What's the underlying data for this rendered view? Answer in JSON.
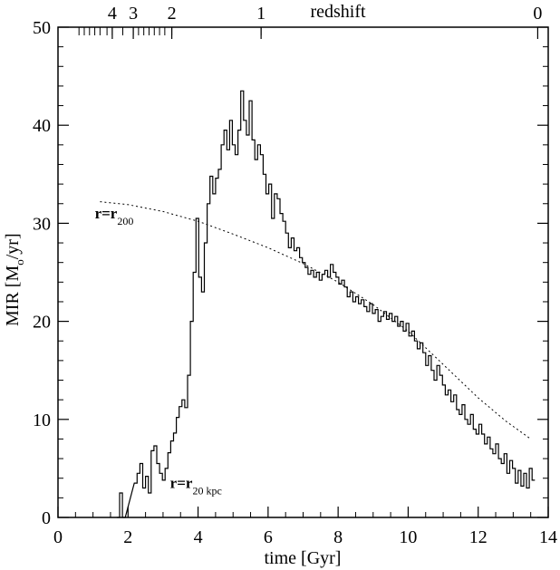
{
  "chart_data": {
    "type": "line",
    "xlabel": "time [Gyr]",
    "ylabel": "MIR [M",
    "ylabel_sub": "o",
    "ylabel_tail": "/yr]",
    "top_axis_label": "redshift",
    "xlim": [
      0,
      14
    ],
    "ylim": [
      0,
      50
    ],
    "x_ticks": [
      0,
      2,
      4,
      6,
      8,
      10,
      12,
      14
    ],
    "y_ticks": [
      0,
      10,
      20,
      30,
      40,
      50
    ],
    "x_tick_labels": [
      "0",
      "2",
      "4",
      "6",
      "8",
      "10",
      "12",
      "14"
    ],
    "y_tick_labels": [
      "0",
      "10",
      "20",
      "30",
      "40",
      "50"
    ],
    "redshift_ticks": [
      {
        "label": "4",
        "t": 1.55
      },
      {
        "label": "3",
        "t": 2.15
      },
      {
        "label": "2",
        "t": 3.25
      },
      {
        "label": "1",
        "t": 5.8
      },
      {
        "label": "0",
        "t": 13.7
      }
    ],
    "redshift_minor_ticks": [
      0.6,
      0.75,
      0.9,
      1.05,
      1.2,
      1.4,
      1.55,
      1.85,
      2.15,
      2.3,
      2.45,
      2.6,
      2.75,
      2.9,
      3.05,
      3.25,
      5.8
    ],
    "series": [
      {
        "style": "step",
        "points": [
          [
            1.72,
            0.0
          ],
          [
            1.8,
            2.5
          ],
          [
            1.88,
            0.0
          ],
          [
            2.22,
            3.5
          ],
          [
            2.3,
            4.5
          ],
          [
            2.38,
            5.5
          ],
          [
            2.46,
            3.0
          ],
          [
            2.54,
            4.2
          ],
          [
            2.62,
            2.5
          ],
          [
            2.7,
            6.8
          ],
          [
            2.78,
            7.3
          ],
          [
            2.86,
            5.5
          ],
          [
            2.94,
            4.5
          ],
          [
            3.02,
            3.8
          ],
          [
            3.1,
            5.0
          ],
          [
            3.18,
            6.6
          ],
          [
            3.26,
            7.8
          ],
          [
            3.34,
            8.6
          ],
          [
            3.42,
            10.2
          ],
          [
            3.5,
            11.3
          ],
          [
            3.58,
            12.0
          ],
          [
            3.66,
            11.2
          ],
          [
            3.74,
            14.5
          ],
          [
            3.82,
            20.0
          ],
          [
            3.9,
            25.0
          ],
          [
            3.98,
            30.5
          ],
          [
            4.06,
            24.5
          ],
          [
            4.14,
            23.0
          ],
          [
            4.22,
            28.0
          ],
          [
            4.3,
            32.0
          ],
          [
            4.38,
            34.8
          ],
          [
            4.46,
            33.0
          ],
          [
            4.54,
            34.6
          ],
          [
            4.62,
            35.5
          ],
          [
            4.7,
            38.0
          ],
          [
            4.78,
            39.5
          ],
          [
            4.86,
            37.5
          ],
          [
            4.94,
            40.5
          ],
          [
            5.02,
            38.0
          ],
          [
            5.1,
            37.0
          ],
          [
            5.18,
            39.5
          ],
          [
            5.26,
            43.5
          ],
          [
            5.34,
            40.5
          ],
          [
            5.42,
            39.0
          ],
          [
            5.5,
            42.5
          ],
          [
            5.58,
            38.5
          ],
          [
            5.66,
            36.5
          ],
          [
            5.74,
            38.0
          ],
          [
            5.82,
            37.0
          ],
          [
            5.9,
            35.0
          ],
          [
            5.98,
            33.0
          ],
          [
            6.06,
            34.0
          ],
          [
            6.14,
            30.5
          ],
          [
            6.22,
            33.0
          ],
          [
            6.3,
            32.5
          ],
          [
            6.38,
            31.0
          ],
          [
            6.46,
            30.2
          ],
          [
            6.54,
            29.0
          ],
          [
            6.62,
            27.5
          ],
          [
            6.7,
            28.5
          ],
          [
            6.78,
            27.2
          ],
          [
            6.86,
            27.5
          ],
          [
            6.94,
            26.5
          ],
          [
            7.02,
            26.0
          ],
          [
            7.1,
            25.5
          ],
          [
            7.18,
            24.8
          ],
          [
            7.26,
            25.2
          ],
          [
            7.34,
            24.5
          ],
          [
            7.42,
            25.0
          ],
          [
            7.5,
            24.2
          ],
          [
            7.58,
            24.8
          ],
          [
            7.66,
            25.2
          ],
          [
            7.74,
            24.5
          ],
          [
            7.82,
            25.8
          ],
          [
            7.9,
            25.0
          ],
          [
            7.98,
            24.5
          ],
          [
            8.06,
            23.8
          ],
          [
            8.14,
            24.2
          ],
          [
            8.22,
            23.5
          ],
          [
            8.3,
            22.5
          ],
          [
            8.38,
            23.0
          ],
          [
            8.46,
            22.0
          ],
          [
            8.54,
            22.5
          ],
          [
            8.62,
            21.8
          ],
          [
            8.7,
            22.2
          ],
          [
            8.78,
            21.5
          ],
          [
            8.86,
            21.0
          ],
          [
            8.94,
            21.8
          ],
          [
            9.02,
            20.8
          ],
          [
            9.1,
            21.2
          ],
          [
            9.18,
            20.0
          ],
          [
            9.26,
            20.5
          ],
          [
            9.34,
            21.0
          ],
          [
            9.42,
            20.2
          ],
          [
            9.5,
            20.8
          ],
          [
            9.58,
            20.0
          ],
          [
            9.66,
            20.5
          ],
          [
            9.74,
            19.5
          ],
          [
            9.82,
            20.0
          ],
          [
            9.9,
            19.0
          ],
          [
            9.98,
            19.8
          ],
          [
            10.06,
            18.5
          ],
          [
            10.14,
            19.0
          ],
          [
            10.22,
            18.0
          ],
          [
            10.3,
            17.2
          ],
          [
            10.38,
            17.8
          ],
          [
            10.46,
            16.8
          ],
          [
            10.54,
            15.5
          ],
          [
            10.62,
            16.5
          ],
          [
            10.7,
            15.0
          ],
          [
            10.78,
            14.0
          ],
          [
            10.86,
            15.5
          ],
          [
            10.94,
            14.5
          ],
          [
            11.02,
            13.5
          ],
          [
            11.1,
            12.5
          ],
          [
            11.18,
            13.0
          ],
          [
            11.26,
            11.8
          ],
          [
            11.34,
            12.5
          ],
          [
            11.42,
            11.0
          ],
          [
            11.5,
            10.5
          ],
          [
            11.58,
            11.5
          ],
          [
            11.66,
            10.0
          ],
          [
            11.74,
            9.5
          ],
          [
            11.82,
            10.5
          ],
          [
            11.9,
            9.0
          ],
          [
            11.98,
            8.5
          ],
          [
            12.06,
            9.5
          ],
          [
            12.14,
            8.5
          ],
          [
            12.22,
            7.5
          ],
          [
            12.3,
            8.2
          ],
          [
            12.38,
            7.0
          ],
          [
            12.46,
            6.5
          ],
          [
            12.54,
            7.5
          ],
          [
            12.62,
            6.0
          ],
          [
            12.7,
            5.5
          ],
          [
            12.78,
            6.5
          ],
          [
            12.86,
            4.5
          ],
          [
            12.94,
            5.8
          ],
          [
            13.02,
            5.0
          ],
          [
            13.1,
            3.5
          ],
          [
            13.18,
            4.8
          ],
          [
            13.26,
            3.2
          ],
          [
            13.34,
            4.5
          ],
          [
            13.42,
            3.0
          ],
          [
            13.5,
            5.0
          ],
          [
            13.58,
            3.8
          ]
        ]
      },
      {
        "style": "dotted",
        "points": [
          [
            1.2,
            32.2
          ],
          [
            2.0,
            31.9
          ],
          [
            3.0,
            31.2
          ],
          [
            4.0,
            30.2
          ],
          [
            5.0,
            28.9
          ],
          [
            6.0,
            27.5
          ],
          [
            7.0,
            25.9
          ],
          [
            8.0,
            24.0
          ],
          [
            9.0,
            21.7
          ],
          [
            10.0,
            19.0
          ],
          [
            11.0,
            15.6
          ],
          [
            12.0,
            12.2
          ],
          [
            12.8,
            9.8
          ],
          [
            13.5,
            8.0
          ]
        ]
      }
    ],
    "annotations": [
      {
        "main": "r=r",
        "sub": "200",
        "x": 1.05,
        "y": 30.5
      },
      {
        "main": "r=r",
        "sub": "20 kpc",
        "x": 3.2,
        "y": 3.0
      }
    ]
  }
}
